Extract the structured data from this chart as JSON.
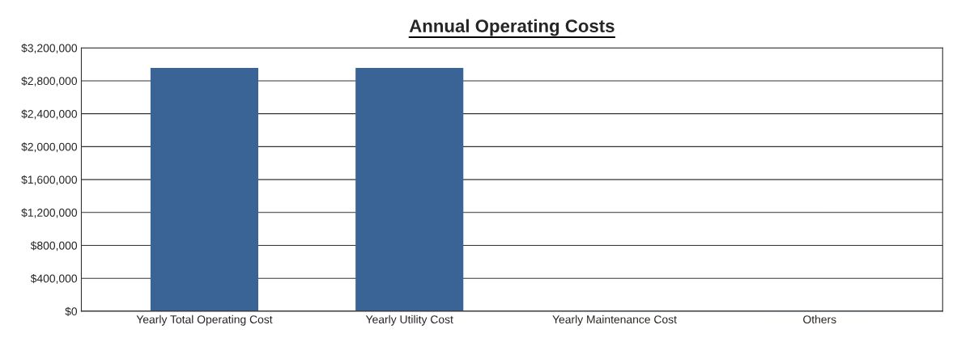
{
  "chart_data": {
    "type": "bar",
    "title": "Annual Operating Costs",
    "categories": [
      "Yearly Total Operating Cost",
      "Yearly Utility Cost",
      "Yearly Maintenance Cost",
      "Others"
    ],
    "values": [
      2950000,
      2950000,
      0,
      0
    ],
    "color": "#3a6495",
    "ylim": [
      0,
      3200000
    ],
    "yticks": [
      {
        "value": 0,
        "label": "$0"
      },
      {
        "value": 400000,
        "label": "$400,000"
      },
      {
        "value": 800000,
        "label": "$800,000"
      },
      {
        "value": 1200000,
        "label": "$1,200,000"
      },
      {
        "value": 1600000,
        "label": "$1,600,000"
      },
      {
        "value": 2000000,
        "label": "$2,000,000"
      },
      {
        "value": 2400000,
        "label": "$2,400,000"
      },
      {
        "value": 2800000,
        "label": "$2,800,000"
      },
      {
        "value": 3200000,
        "label": "$3,200,000"
      }
    ],
    "grid": "y"
  }
}
